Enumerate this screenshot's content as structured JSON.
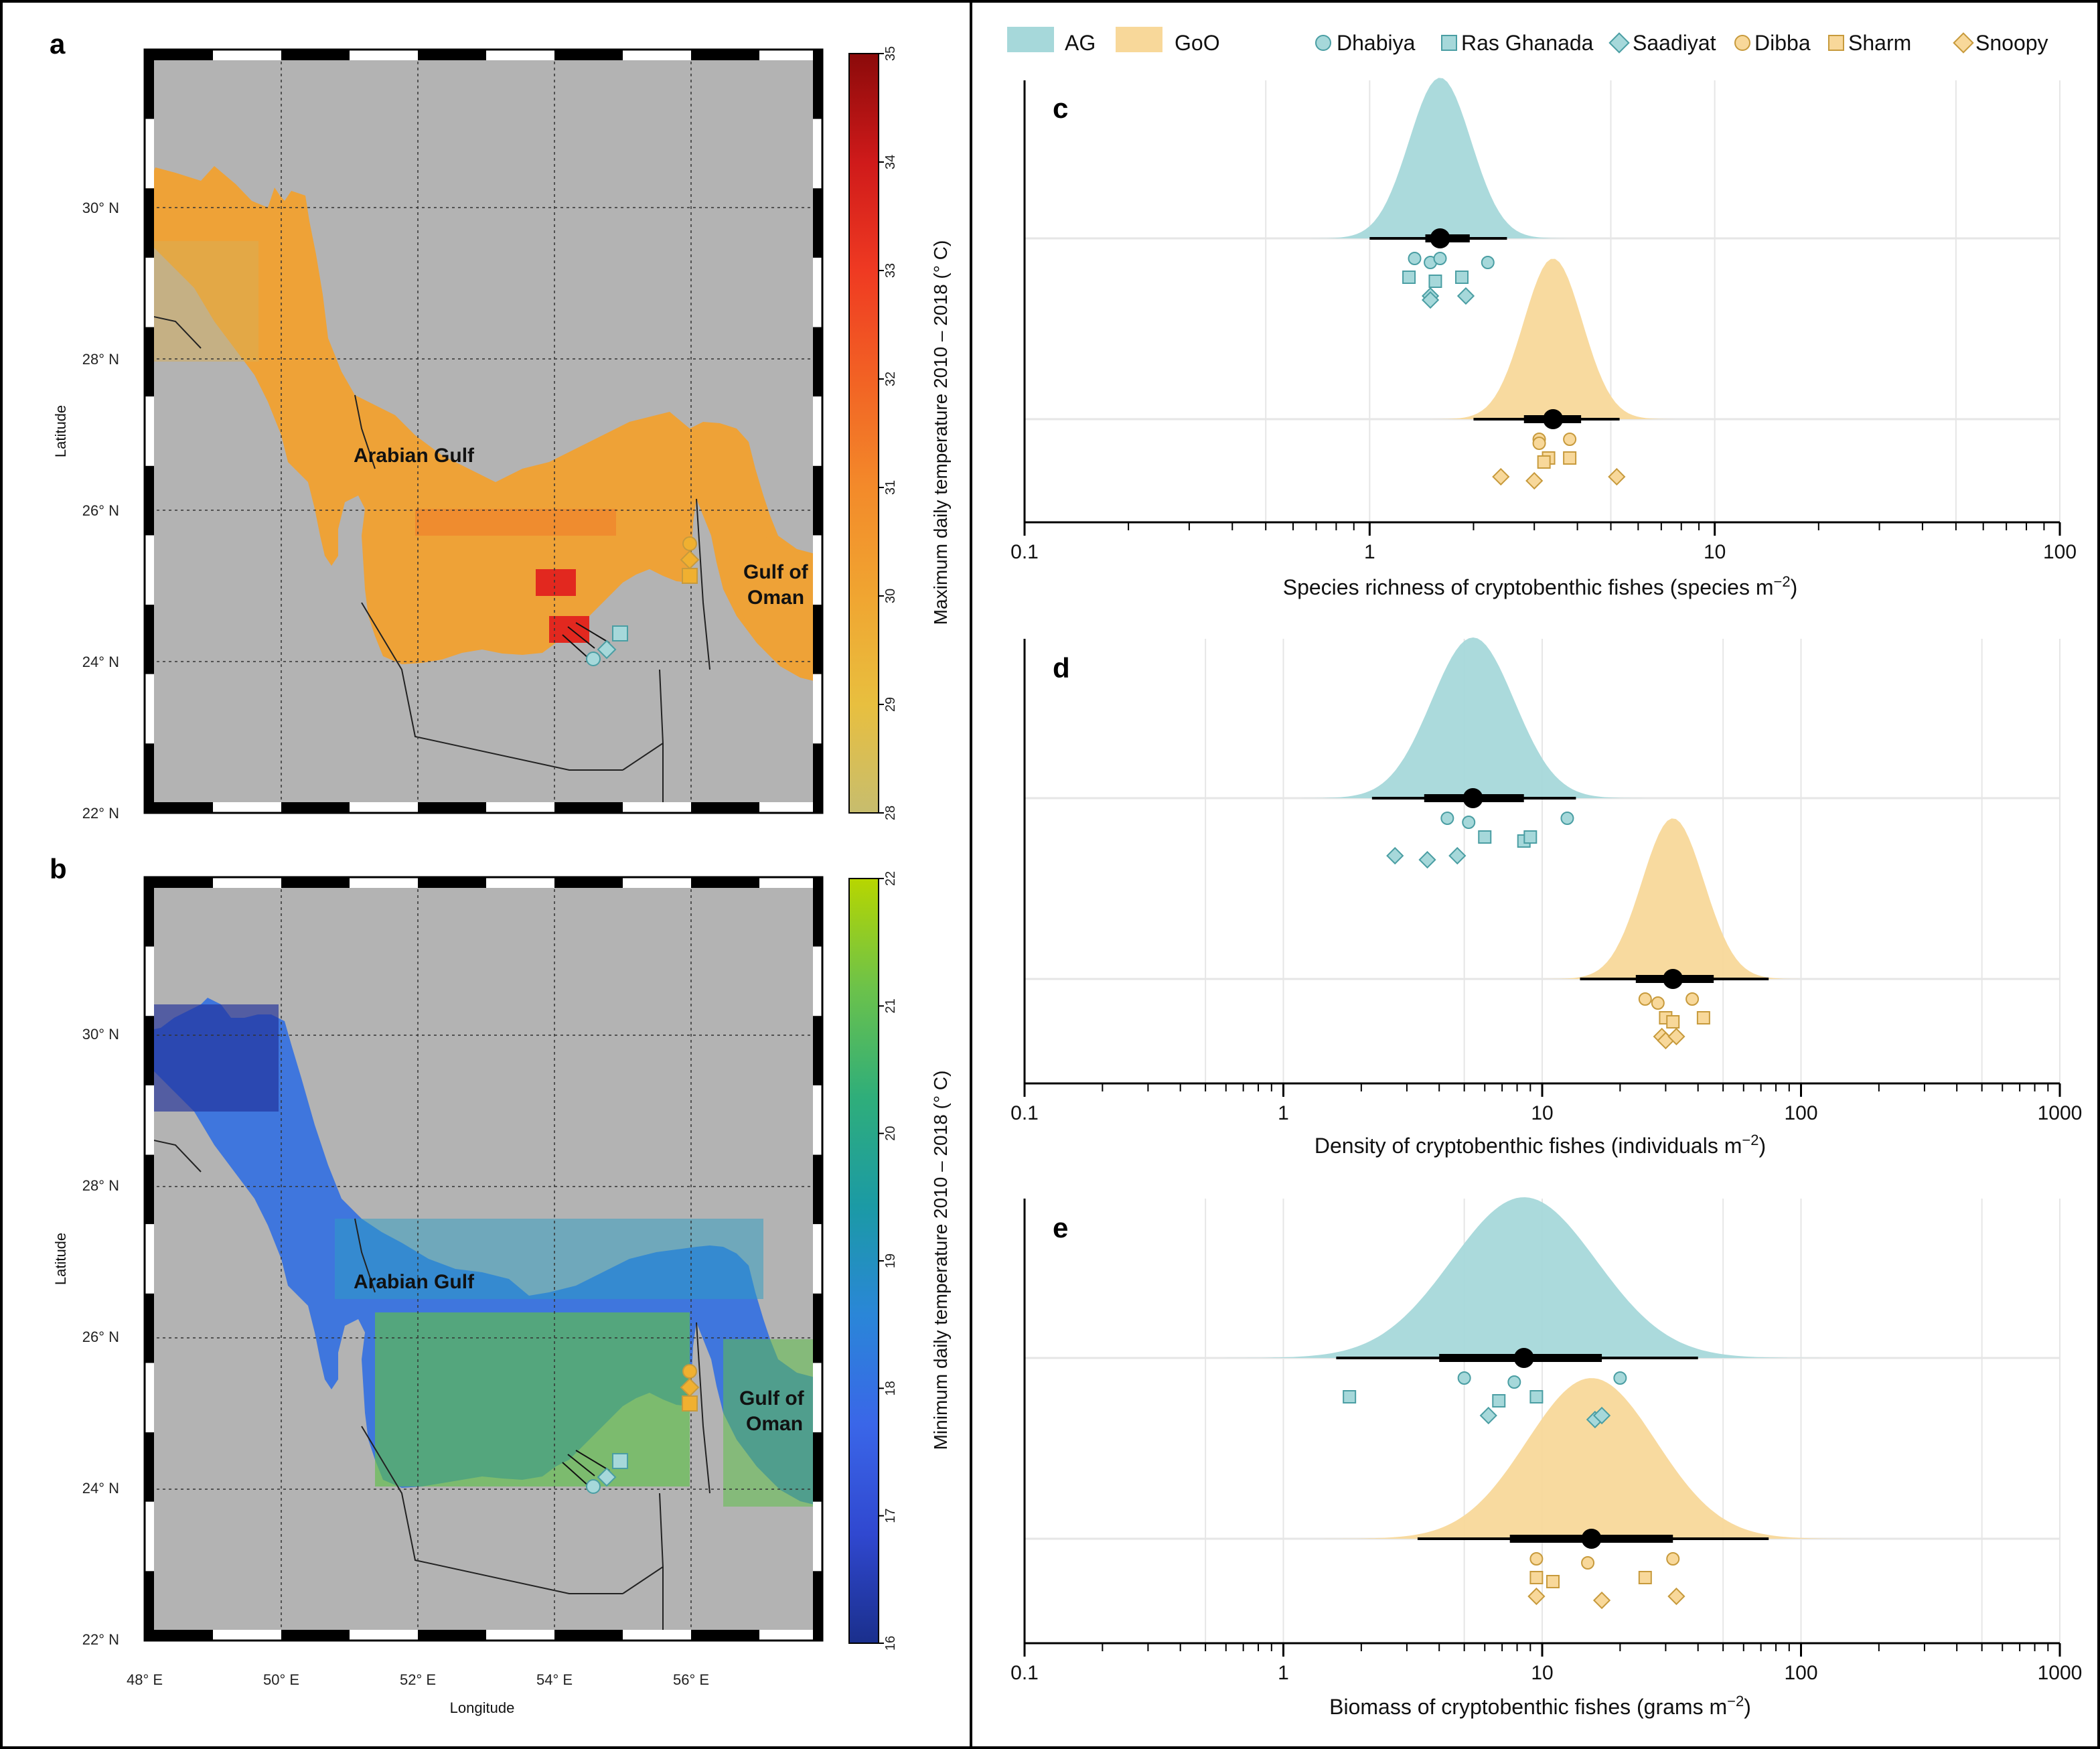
{
  "colors": {
    "AG": "#a6d8da",
    "GoO": "#f8d89a",
    "AG_edge": "#4a9ea3",
    "GoO_edge": "#c79a3c",
    "land": "#b3b3b3"
  },
  "maps": [
    {
      "letter": "a",
      "gulf_label": "Arabian Gulf",
      "oman_label_1": "Gulf of",
      "oman_label_2": "Oman",
      "ylabel": "Latitude",
      "lat_ticks": [
        "30° N",
        "28° N",
        "26° N",
        "24° N",
        "22° N"
      ],
      "cbar_title": "Maximum daily temperature 2010 – 2018 (° C)",
      "cbar_ticks": [
        "35",
        "34",
        "33",
        "32",
        "31",
        "30",
        "29",
        "28"
      ],
      "palette": [
        "#8b0a0a",
        "#cf1a1a",
        "#ef3a22",
        "#f26224",
        "#f38a2a",
        "#f0a531",
        "#e8bf3f",
        "#c7bd6e"
      ],
      "gulf_color": "#eea237",
      "hot_color": "#e2281f",
      "warm_color": "#f07a2a",
      "cool_color": "#d7ad55"
    },
    {
      "letter": "b",
      "gulf_label": "Arabian Gulf",
      "oman_label_1": "Gulf of",
      "oman_label_2": "Oman",
      "ylabel": "Latitude",
      "xlabel": "Longitude",
      "lat_ticks": [
        "30° N",
        "28° N",
        "26° N",
        "24° N",
        "22° N"
      ],
      "lon_ticks": [
        "48° E",
        "50° E",
        "52° E",
        "54° E",
        "56° E"
      ],
      "cbar_title": "Minimum daily temperature 2010 – 2018 (° C)",
      "cbar_ticks": [
        "22",
        "21",
        "20",
        "19",
        "18",
        "17",
        "16"
      ],
      "palette": [
        "#b7d600",
        "#6cc24a",
        "#2fae7a",
        "#1b9aa5",
        "#2a86d8",
        "#3a66e8",
        "#3048d0",
        "#1a2f8c"
      ],
      "gulf_color": "#3f76dd",
      "dark_color": "#20309a",
      "mid_color": "#2b9ec4",
      "south_color": "#5fc04a"
    }
  ],
  "legend": {
    "groups": [
      {
        "key": "AG",
        "label": "AG"
      },
      {
        "key": "GoO",
        "label": "GoO"
      }
    ],
    "sites": [
      {
        "label": "Dhabiya",
        "shape": "circle",
        "group": "AG"
      },
      {
        "label": "Ras Ghanada",
        "shape": "square",
        "group": "AG"
      },
      {
        "label": "Saadiyat",
        "shape": "diamond",
        "group": "AG"
      },
      {
        "label": "Dibba",
        "shape": "circle",
        "group": "GoO"
      },
      {
        "label": "Sharm",
        "shape": "square",
        "group": "GoO"
      },
      {
        "label": "Snoopy",
        "shape": "diamond",
        "group": "GoO"
      }
    ]
  },
  "chart_data": [
    {
      "panel": "c",
      "type": "density",
      "x_scale": "log10",
      "xlim": [
        0.1,
        100
      ],
      "x_ticks": [
        "0.1",
        "1",
        "10",
        "100"
      ],
      "xlabel": "Species richness of cryptobenthic fishes (species m",
      "xlabel_sup": "−2",
      "xlabel_end": ")",
      "series": [
        {
          "name": "AG",
          "mean": 1.6,
          "sd_log10": 0.09,
          "ci50": [
            1.45,
            1.95
          ],
          "ci95": [
            1.0,
            2.5
          ],
          "sites": [
            {
              "shape": "circle",
              "values": [
                1.35,
                1.5,
                1.6,
                2.2
              ]
            },
            {
              "shape": "square",
              "values": [
                1.3,
                1.55,
                1.85
              ]
            },
            {
              "shape": "diamond",
              "values": [
                1.5,
                1.5,
                1.9
              ]
            }
          ]
        },
        {
          "name": "GoO",
          "mean": 3.4,
          "sd_log10": 0.085,
          "ci50": [
            2.8,
            4.1
          ],
          "ci95": [
            2.0,
            5.3
          ],
          "sites": [
            {
              "shape": "circle",
              "values": [
                3.1,
                3.1,
                3.8
              ]
            },
            {
              "shape": "square",
              "values": [
                3.3,
                3.2,
                3.8
              ]
            },
            {
              "shape": "diamond",
              "values": [
                2.4,
                3.0,
                5.2
              ]
            }
          ]
        }
      ]
    },
    {
      "panel": "d",
      "type": "density",
      "x_scale": "log10",
      "xlim": [
        0.1,
        1000
      ],
      "x_ticks": [
        "0.1",
        "1",
        "10",
        "100",
        "1000"
      ],
      "xlabel": "Density of cryptobenthic fishes (individuals m",
      "xlabel_sup": "−2",
      "xlabel_end": ")",
      "series": [
        {
          "name": "AG",
          "mean": 5.4,
          "sd_log10": 0.16,
          "ci50": [
            3.5,
            8.5
          ],
          "ci95": [
            2.2,
            13.5
          ],
          "sites": [
            {
              "shape": "circle",
              "values": [
                4.3,
                5.2,
                12.5
              ]
            },
            {
              "shape": "square",
              "values": [
                6.0,
                8.5,
                9.0
              ]
            },
            {
              "shape": "diamond",
              "values": [
                2.7,
                3.6,
                4.7
              ]
            }
          ]
        },
        {
          "name": "GoO",
          "mean": 32,
          "sd_log10": 0.12,
          "ci50": [
            23,
            46
          ],
          "ci95": [
            14,
            75
          ],
          "sites": [
            {
              "shape": "circle",
              "values": [
                25,
                28,
                38
              ]
            },
            {
              "shape": "square",
              "values": [
                30,
                32,
                42
              ]
            },
            {
              "shape": "diamond",
              "values": [
                29,
                30,
                33
              ]
            }
          ]
        }
      ]
    },
    {
      "panel": "e",
      "type": "density",
      "x_scale": "log10",
      "xlim": [
        0.1,
        1000
      ],
      "x_ticks": [
        "0.1",
        "1",
        "10",
        "100",
        "1000"
      ],
      "xlabel": "Biomass of cryptobenthic fishes (grams m",
      "xlabel_sup": "−2",
      "xlabel_end": ")",
      "series": [
        {
          "name": "AG",
          "mean": 8.5,
          "sd_log10": 0.28,
          "ci50": [
            4.0,
            17
          ],
          "ci95": [
            1.6,
            40
          ],
          "sites": [
            {
              "shape": "circle",
              "values": [
                5.0,
                7.8,
                20
              ]
            },
            {
              "shape": "square",
              "values": [
                1.8,
                6.8,
                9.5
              ]
            },
            {
              "shape": "diamond",
              "values": [
                6.2,
                16,
                17
              ]
            }
          ]
        },
        {
          "name": "GoO",
          "mean": 15.5,
          "sd_log10": 0.25,
          "ci50": [
            7.5,
            32
          ],
          "ci95": [
            3.3,
            75
          ],
          "sites": [
            {
              "shape": "circle",
              "values": [
                9.5,
                15,
                32
              ]
            },
            {
              "shape": "square",
              "values": [
                9.5,
                11,
                25
              ]
            },
            {
              "shape": "diamond",
              "values": [
                9.5,
                17,
                33
              ]
            }
          ]
        }
      ]
    }
  ]
}
